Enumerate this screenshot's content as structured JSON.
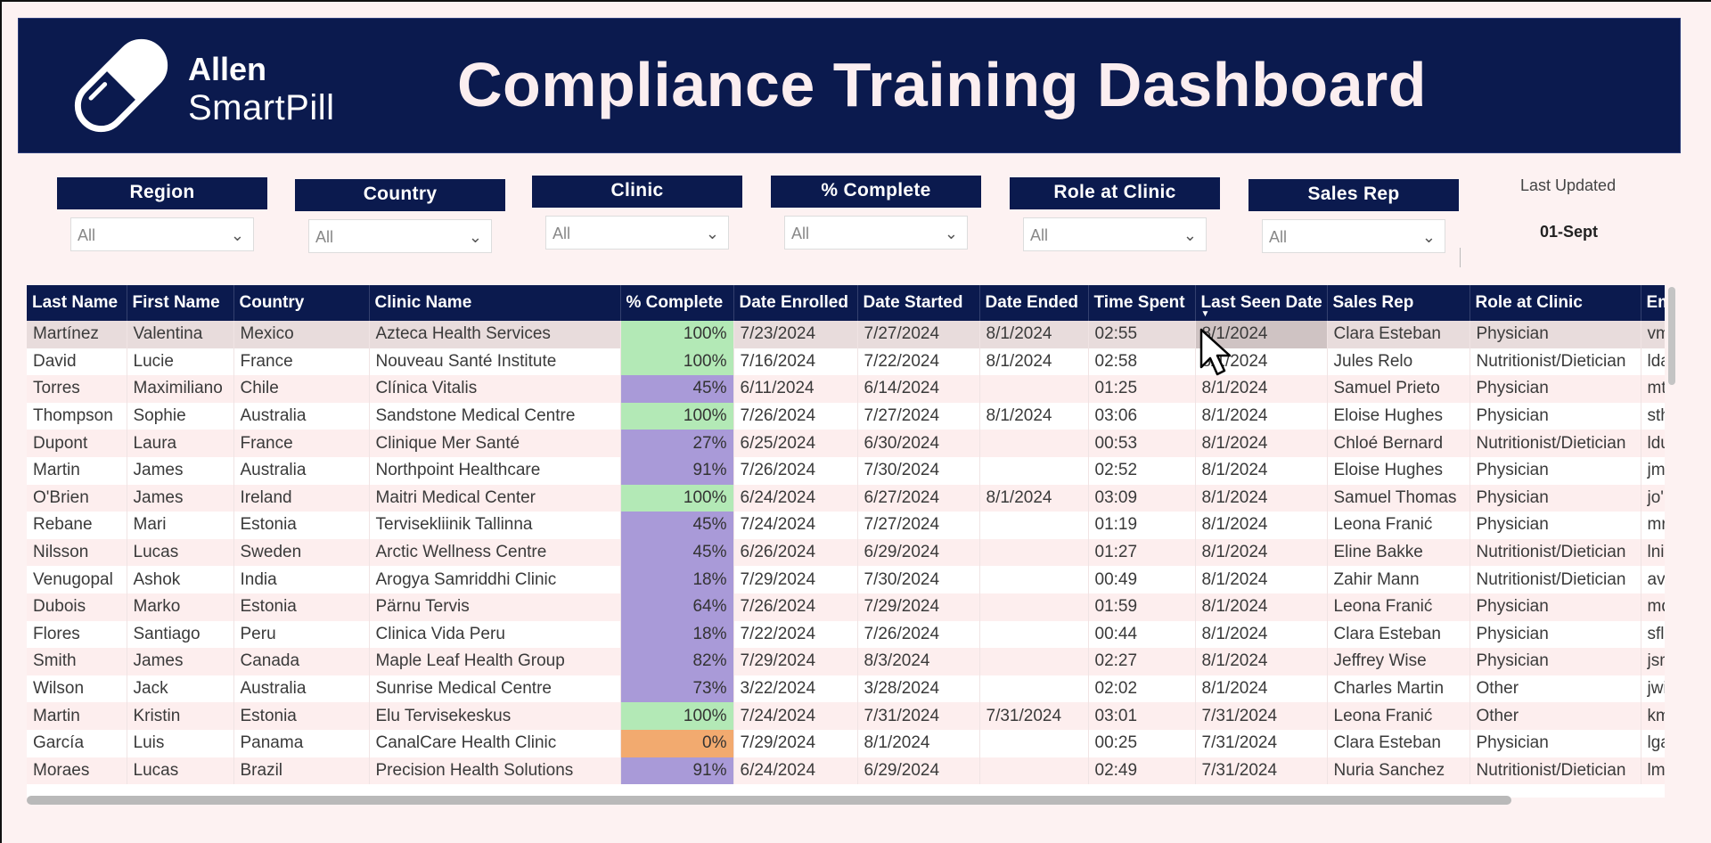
{
  "header": {
    "brand_line1": "Allen",
    "brand_line2": "SmartPill",
    "title": "Compliance Training Dashboard"
  },
  "slicers": [
    {
      "label": "Region",
      "value": "All"
    },
    {
      "label": "Country",
      "value": "All"
    },
    {
      "label": "Clinic",
      "value": "All"
    },
    {
      "label": "% Complete",
      "value": "All"
    },
    {
      "label": "Role at Clinic",
      "value": "All"
    },
    {
      "label": "Sales Rep",
      "value": "All"
    }
  ],
  "last_updated": {
    "label": "Last Updated",
    "value": "01-Sept"
  },
  "table": {
    "columns": [
      "Last Name",
      "First Name",
      "Country",
      "Clinic Name",
      "% Complete",
      "Date Enrolled",
      "Date Started",
      "Date Ended",
      "Time Spent",
      "Last Seen Date",
      "Sales Rep",
      "Role at Clinic",
      "Em"
    ],
    "sorted_column": "Last Seen Date",
    "rows": [
      [
        "Martínez",
        "Valentina",
        "Mexico",
        "Azteca Health Services",
        "100%",
        "7/23/2024",
        "7/27/2024",
        "8/1/2024",
        "02:55",
        "8/1/2024",
        "Clara Esteban",
        "Physician",
        "vm"
      ],
      [
        "David",
        "Lucie",
        "France",
        "Nouveau Santé Institute",
        "100%",
        "7/16/2024",
        "7/22/2024",
        "8/1/2024",
        "02:58",
        "8/1/2024",
        "Jules Relo",
        "Nutritionist/Dietician",
        "lda"
      ],
      [
        "Torres",
        "Maximiliano",
        "Chile",
        "Clínica Vitalis",
        "45%",
        "6/11/2024",
        "6/14/2024",
        "",
        "01:25",
        "8/1/2024",
        "Samuel Prieto",
        "Physician",
        "mtc"
      ],
      [
        "Thompson",
        "Sophie",
        "Australia",
        "Sandstone Medical Centre",
        "100%",
        "7/26/2024",
        "7/27/2024",
        "8/1/2024",
        "03:06",
        "8/1/2024",
        "Eloise Hughes",
        "Physician",
        "sthe"
      ],
      [
        "Dupont",
        "Laura",
        "France",
        "Clinique Mer Santé",
        "27%",
        "6/25/2024",
        "6/30/2024",
        "",
        "00:53",
        "8/1/2024",
        "Chloé Bernard",
        "Nutritionist/Dietician",
        "ldu"
      ],
      [
        "Martin",
        "James",
        "Australia",
        "Northpoint Healthcare",
        "91%",
        "7/26/2024",
        "7/30/2024",
        "",
        "02:52",
        "8/1/2024",
        "Eloise Hughes",
        "Physician",
        "jma"
      ],
      [
        "O'Brien",
        "James",
        "Ireland",
        "Maitri Medical Center",
        "100%",
        "6/24/2024",
        "6/27/2024",
        "8/1/2024",
        "03:09",
        "8/1/2024",
        "Samuel Thomas",
        "Physician",
        "jo'b"
      ],
      [
        "Rebane",
        "Mari",
        "Estonia",
        "Tervisekliinik Tallinna",
        "45%",
        "7/24/2024",
        "7/27/2024",
        "",
        "01:19",
        "8/1/2024",
        "Leona Franić",
        "Physician",
        "mre"
      ],
      [
        "Nilsson",
        "Lucas",
        "Sweden",
        "Arctic Wellness Centre",
        "45%",
        "6/26/2024",
        "6/29/2024",
        "",
        "01:27",
        "8/1/2024",
        "Eline Bakke",
        "Nutritionist/Dietician",
        "lnils"
      ],
      [
        "Venugopal",
        "Ashok",
        "India",
        "Arogya Samriddhi Clinic",
        "18%",
        "7/29/2024",
        "7/30/2024",
        "",
        "00:49",
        "8/1/2024",
        "Zahir Mann",
        "Nutritionist/Dietician",
        "ave"
      ],
      [
        "Dubois",
        "Marko",
        "Estonia",
        "Pärnu Tervis",
        "64%",
        "7/26/2024",
        "7/29/2024",
        "",
        "01:59",
        "8/1/2024",
        "Leona Franić",
        "Physician",
        "md"
      ],
      [
        "Flores",
        "Santiago",
        "Peru",
        "Clinica Vida Peru",
        "18%",
        "7/22/2024",
        "7/26/2024",
        "",
        "00:44",
        "8/1/2024",
        "Clara Esteban",
        "Physician",
        "sflo"
      ],
      [
        "Smith",
        "James",
        "Canada",
        "Maple Leaf Health Group",
        "82%",
        "7/29/2024",
        "8/3/2024",
        "",
        "02:27",
        "8/1/2024",
        "Jeffrey Wise",
        "Physician",
        "jsm"
      ],
      [
        "Wilson",
        "Jack",
        "Australia",
        "Sunrise Medical Centre",
        "73%",
        "3/22/2024",
        "3/28/2024",
        "",
        "02:02",
        "8/1/2024",
        "Charles Martin",
        "Other",
        "jwil"
      ],
      [
        "Martin",
        "Kristin",
        "Estonia",
        "Elu Tervisekeskus",
        "100%",
        "7/24/2024",
        "7/31/2024",
        "7/31/2024",
        "03:01",
        "7/31/2024",
        "Leona Franić",
        "Other",
        "km"
      ],
      [
        "García",
        "Luis",
        "Panama",
        "CanalCare Health Clinic",
        "0%",
        "7/29/2024",
        "8/1/2024",
        "",
        "00:25",
        "7/31/2024",
        "Clara Esteban",
        "Physician",
        "lga"
      ],
      [
        "Moraes",
        "Lucas",
        "Brazil",
        "Precision Health Solutions",
        "91%",
        "6/24/2024",
        "6/29/2024",
        "",
        "02:49",
        "7/31/2024",
        "Nuria Sanchez",
        "Nutritionist/Dietician",
        "lmo"
      ]
    ]
  },
  "colors": {
    "navy": "#0b1a4e",
    "bg": "#fdf2f2",
    "pct_full": "#b3e9b6",
    "pct_mid": "#a99ad8",
    "pct_zero": "#f2aa6f"
  },
  "icons": {
    "logo": "pill-icon",
    "dropdown": "chevron-down-icon",
    "sort": "sort-desc-icon",
    "cursor": "mouse-pointer-icon"
  }
}
